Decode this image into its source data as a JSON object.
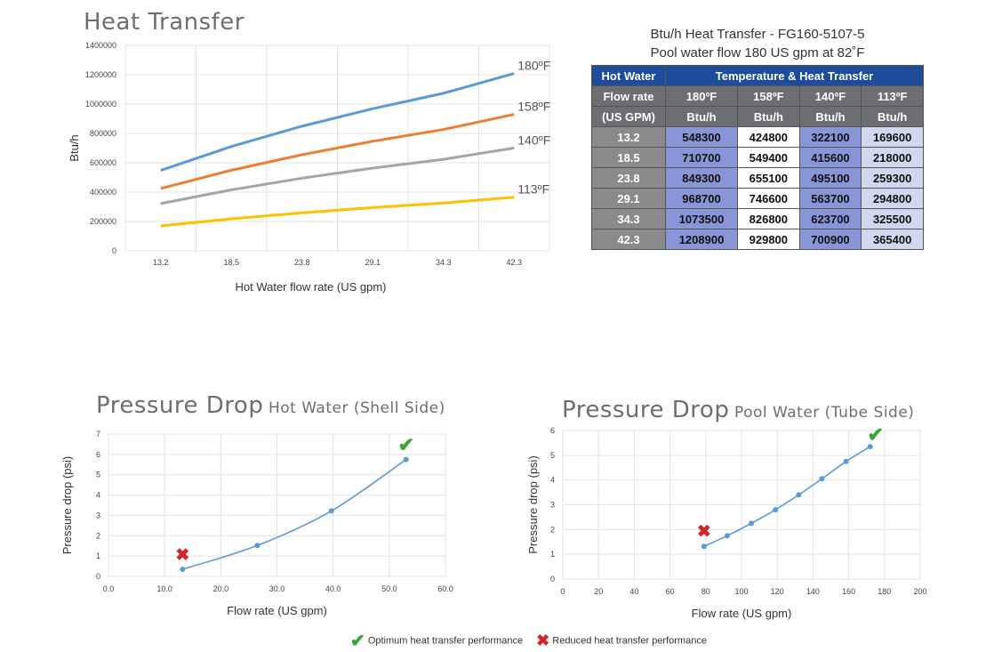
{
  "heat_transfer": {
    "title": "Heat Transfer"
  },
  "pd_hot": {
    "title_main": "Pressure Drop",
    "title_sub": "Hot Water (Shell Side)"
  },
  "pd_pool": {
    "title_main": "Pressure Drop",
    "title_sub": "Pool Water (Tube Side)"
  },
  "table": {
    "caption_line1": "Btu/h Heat Transfer - FG160-5107-5",
    "caption_line2": "Pool water flow 180 US gpm at 82˚F",
    "header_hot_water": "Hot Water",
    "header_temp_heat": "Temperature & Heat Transfer",
    "header_flow_rate": "Flow rate",
    "header_us_gpm": "(US GPM)",
    "temps": [
      "180ºF",
      "158ºF",
      "140ºF",
      "113ºF"
    ],
    "unit": "Btu/h",
    "rows": [
      {
        "flow": "13.2",
        "v": [
          "548300",
          "424800",
          "322100",
          "169600"
        ]
      },
      {
        "flow": "18.5",
        "v": [
          "710700",
          "549400",
          "415600",
          "218000"
        ]
      },
      {
        "flow": "23.8",
        "v": [
          "849300",
          "655100",
          "495100",
          "259300"
        ]
      },
      {
        "flow": "29.1",
        "v": [
          "968700",
          "746600",
          "563700",
          "294800"
        ]
      },
      {
        "flow": "34.3",
        "v": [
          "1073500",
          "826800",
          "623700",
          "325500"
        ]
      },
      {
        "flow": "42.3",
        "v": [
          "1208900",
          "929800",
          "700900",
          "365400"
        ]
      }
    ]
  },
  "legend": {
    "optimum": "Optimum heat transfer performance",
    "reduced": "Reduced heat transfer performance",
    "optimum_color": "#3aa335",
    "reduced_color": "#d0252a"
  },
  "chart_data": [
    {
      "type": "line",
      "title": "Heat Transfer",
      "xlabel": "Hot Water flow rate (US gpm)",
      "ylabel": "Btu/h",
      "categories": [
        "13.2",
        "18.5",
        "23.8",
        "29.1",
        "34.3",
        "42.3"
      ],
      "yticks": [
        "0",
        "200000",
        "400000",
        "600000",
        "800000",
        "1000000",
        "1200000",
        "1400000"
      ],
      "ylim": [
        0,
        1400000
      ],
      "grid": true,
      "series": [
        {
          "name": "180ºF",
          "color": "#5b9bd5",
          "values": [
            548300,
            710700,
            849300,
            968700,
            1073500,
            1208900
          ]
        },
        {
          "name": "158ºF",
          "color": "#ed7d31",
          "values": [
            424800,
            549400,
            655100,
            746600,
            826800,
            929800
          ]
        },
        {
          "name": "140ºF",
          "color": "#a5a5a5",
          "values": [
            322100,
            415600,
            495100,
            563700,
            623700,
            700900
          ]
        },
        {
          "name": "113ºF",
          "color": "#ffc000",
          "values": [
            169600,
            218000,
            259300,
            294800,
            325500,
            365400
          ]
        }
      ]
    },
    {
      "type": "line",
      "title": "Pressure Drop Hot Water (Shell Side)",
      "xlabel": "Flow rate (US gpm)",
      "ylabel": "Pressure drop (psi)",
      "xticks": [
        "0.0",
        "10.0",
        "20.0",
        "30.0",
        "40.0",
        "50.0",
        "60.0"
      ],
      "yticks": [
        "0",
        "1",
        "2",
        "3",
        "4",
        "5",
        "6",
        "7"
      ],
      "xlim": [
        0,
        60
      ],
      "ylim": [
        0,
        7
      ],
      "grid": true,
      "series": [
        {
          "color": "#5b9bd5",
          "points": [
            [
              13.2,
              0.35
            ],
            [
              26.5,
              1.52
            ],
            [
              39.7,
              3.22
            ],
            [
              53.0,
              5.75
            ]
          ]
        }
      ],
      "markers": [
        {
          "kind": "optimum",
          "x": 53.0,
          "y": 6.5
        },
        {
          "kind": "reduced",
          "x": 13.2,
          "y": 1.1
        }
      ]
    },
    {
      "type": "line",
      "title": "Pressure Drop Pool Water (Tube Side)",
      "xlabel": "Flow rate (US gpm)",
      "ylabel": "Pressure drop (psi)",
      "xticks": [
        "0",
        "20",
        "40",
        "60",
        "80",
        "100",
        "120",
        "140",
        "160",
        "180",
        "200"
      ],
      "yticks": [
        "0",
        "1",
        "2",
        "3",
        "4",
        "5",
        "6"
      ],
      "xlim": [
        0,
        200
      ],
      "ylim": [
        0,
        6
      ],
      "grid": true,
      "series": [
        {
          "color": "#5b9bd5",
          "points": [
            [
              79,
              1.32
            ],
            [
              92,
              1.75
            ],
            [
              105.5,
              2.25
            ],
            [
              119,
              2.8
            ],
            [
              132,
              3.4
            ],
            [
              145,
              4.05
            ],
            [
              158.5,
              4.75
            ],
            [
              172,
              5.35
            ]
          ]
        }
      ],
      "markers": [
        {
          "kind": "optimum",
          "x": 175,
          "y": 5.85
        },
        {
          "kind": "reduced",
          "x": 79,
          "y": 1.95
        }
      ]
    }
  ]
}
